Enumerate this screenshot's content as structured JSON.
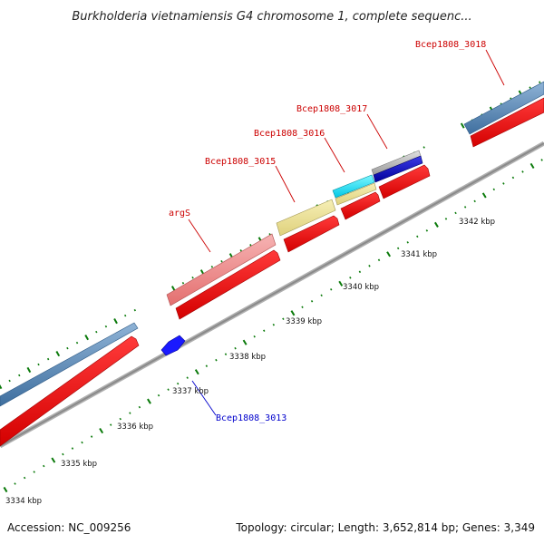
{
  "title": "Burkholderia vietnamiensis G4 chromosome 1, complete sequenc...",
  "accession": "Accession: NC_009256",
  "topology": "Topology: circular; Length: 3,652,814 bp; Genes: 3,349",
  "colors": {
    "backbone": "#909090",
    "cds": "#ff0000",
    "tick": "#0a7a0a",
    "label_red": "#cc0000",
    "label_blue": "#0000cc"
  },
  "kbp_ticks": [
    "3334 kbp",
    "3335 kbp",
    "3336 kbp",
    "3337 kbp",
    "3338 kbp",
    "3339 kbp",
    "3340 kbp",
    "3341 kbp",
    "3342 kbp"
  ],
  "gene_labels": [
    {
      "name": "Bcep1808_3018",
      "color": "#cc0000"
    },
    {
      "name": "Bcep1808_3017",
      "color": "#cc0000"
    },
    {
      "name": "Bcep1808_3016",
      "color": "#cc0000"
    },
    {
      "name": "Bcep1808_3015",
      "color": "#cc0000"
    },
    {
      "name": "argS",
      "color": "#cc0000"
    },
    {
      "name": "Bcep1808_3013",
      "color": "#0000cc"
    }
  ]
}
